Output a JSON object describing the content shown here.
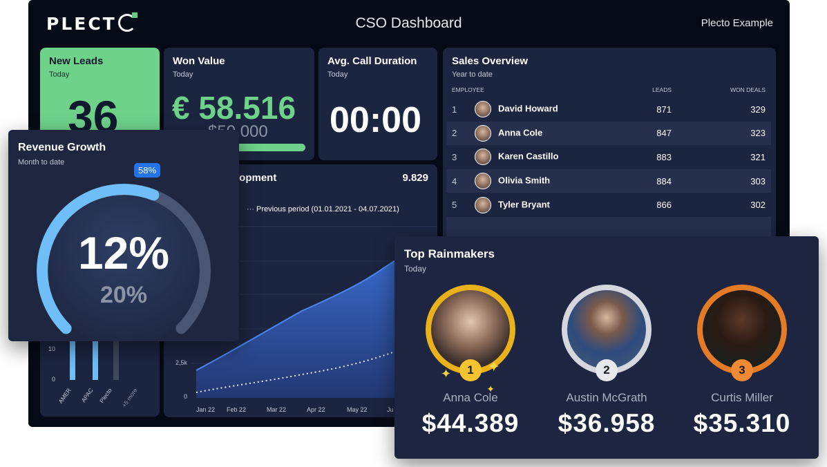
{
  "brand": {
    "logo": "PLECT",
    "title": "CSO Dashboard",
    "org": "Plecto Example"
  },
  "new_leads": {
    "title": "New Leads",
    "sub": "Today",
    "value": "36"
  },
  "won_value": {
    "title": "Won Value",
    "sub": "Today",
    "value": "€ 58.516",
    "target": "$50.000",
    "progress": 1.0
  },
  "call_duration": {
    "title": "Avg. Call Duration",
    "sub": "Today",
    "value": "00:00"
  },
  "sales_overview": {
    "title": "Sales Overview",
    "sub": "Year to date",
    "columns": [
      "EMPLOYEE",
      "LEADS",
      "WON DEALS"
    ],
    "rows": [
      {
        "rank": "1",
        "name": "David Howard",
        "leads": "871",
        "won": "329"
      },
      {
        "rank": "2",
        "name": "Anna Cole",
        "leads": "847",
        "won": "323"
      },
      {
        "rank": "3",
        "name": "Karen Castillo",
        "leads": "883",
        "won": "321"
      },
      {
        "rank": "4",
        "name": "Olivia Smith",
        "leads": "884",
        "won": "303"
      },
      {
        "rank": "5",
        "name": "Tyler Bryant",
        "leads": "866",
        "won": "302"
      }
    ]
  },
  "development": {
    "title": "lopment",
    "total": "9.829",
    "legend_prev": "Previous period (01.01.2021 - 04.07.2021)",
    "y_ticks": [
      "2,5k",
      "0"
    ],
    "x_ticks": [
      "Jan 22",
      "Feb 22",
      "Mar 22",
      "Apr 22",
      "May 22",
      "Ju"
    ]
  },
  "region_chart": {
    "y_ticks": [
      "10",
      "0"
    ],
    "categories": [
      "AMER",
      "APAC",
      "Plecto",
      "+5 more"
    ]
  },
  "revenue_growth": {
    "title": "Revenue Growth",
    "sub": "Month to date",
    "value": "12%",
    "target": "20%",
    "badge": "58%",
    "progress": 0.58
  },
  "top_rainmakers": {
    "title": "Top Rainmakers",
    "sub": "Today",
    "people": [
      {
        "rank": "1",
        "name": "Anna Cole",
        "value": "$44.389",
        "color": "#e9b21c"
      },
      {
        "rank": "2",
        "name": "Austin McGrath",
        "value": "$36.958",
        "color": "#d4d7de"
      },
      {
        "rank": "3",
        "name": "Curtis Miller",
        "value": "$35.310",
        "color": "#e47b27"
      }
    ]
  },
  "colors": {
    "accent_green": "#6ed28a",
    "gauge_blue": "#6fbef7",
    "card": "#1c2540"
  }
}
